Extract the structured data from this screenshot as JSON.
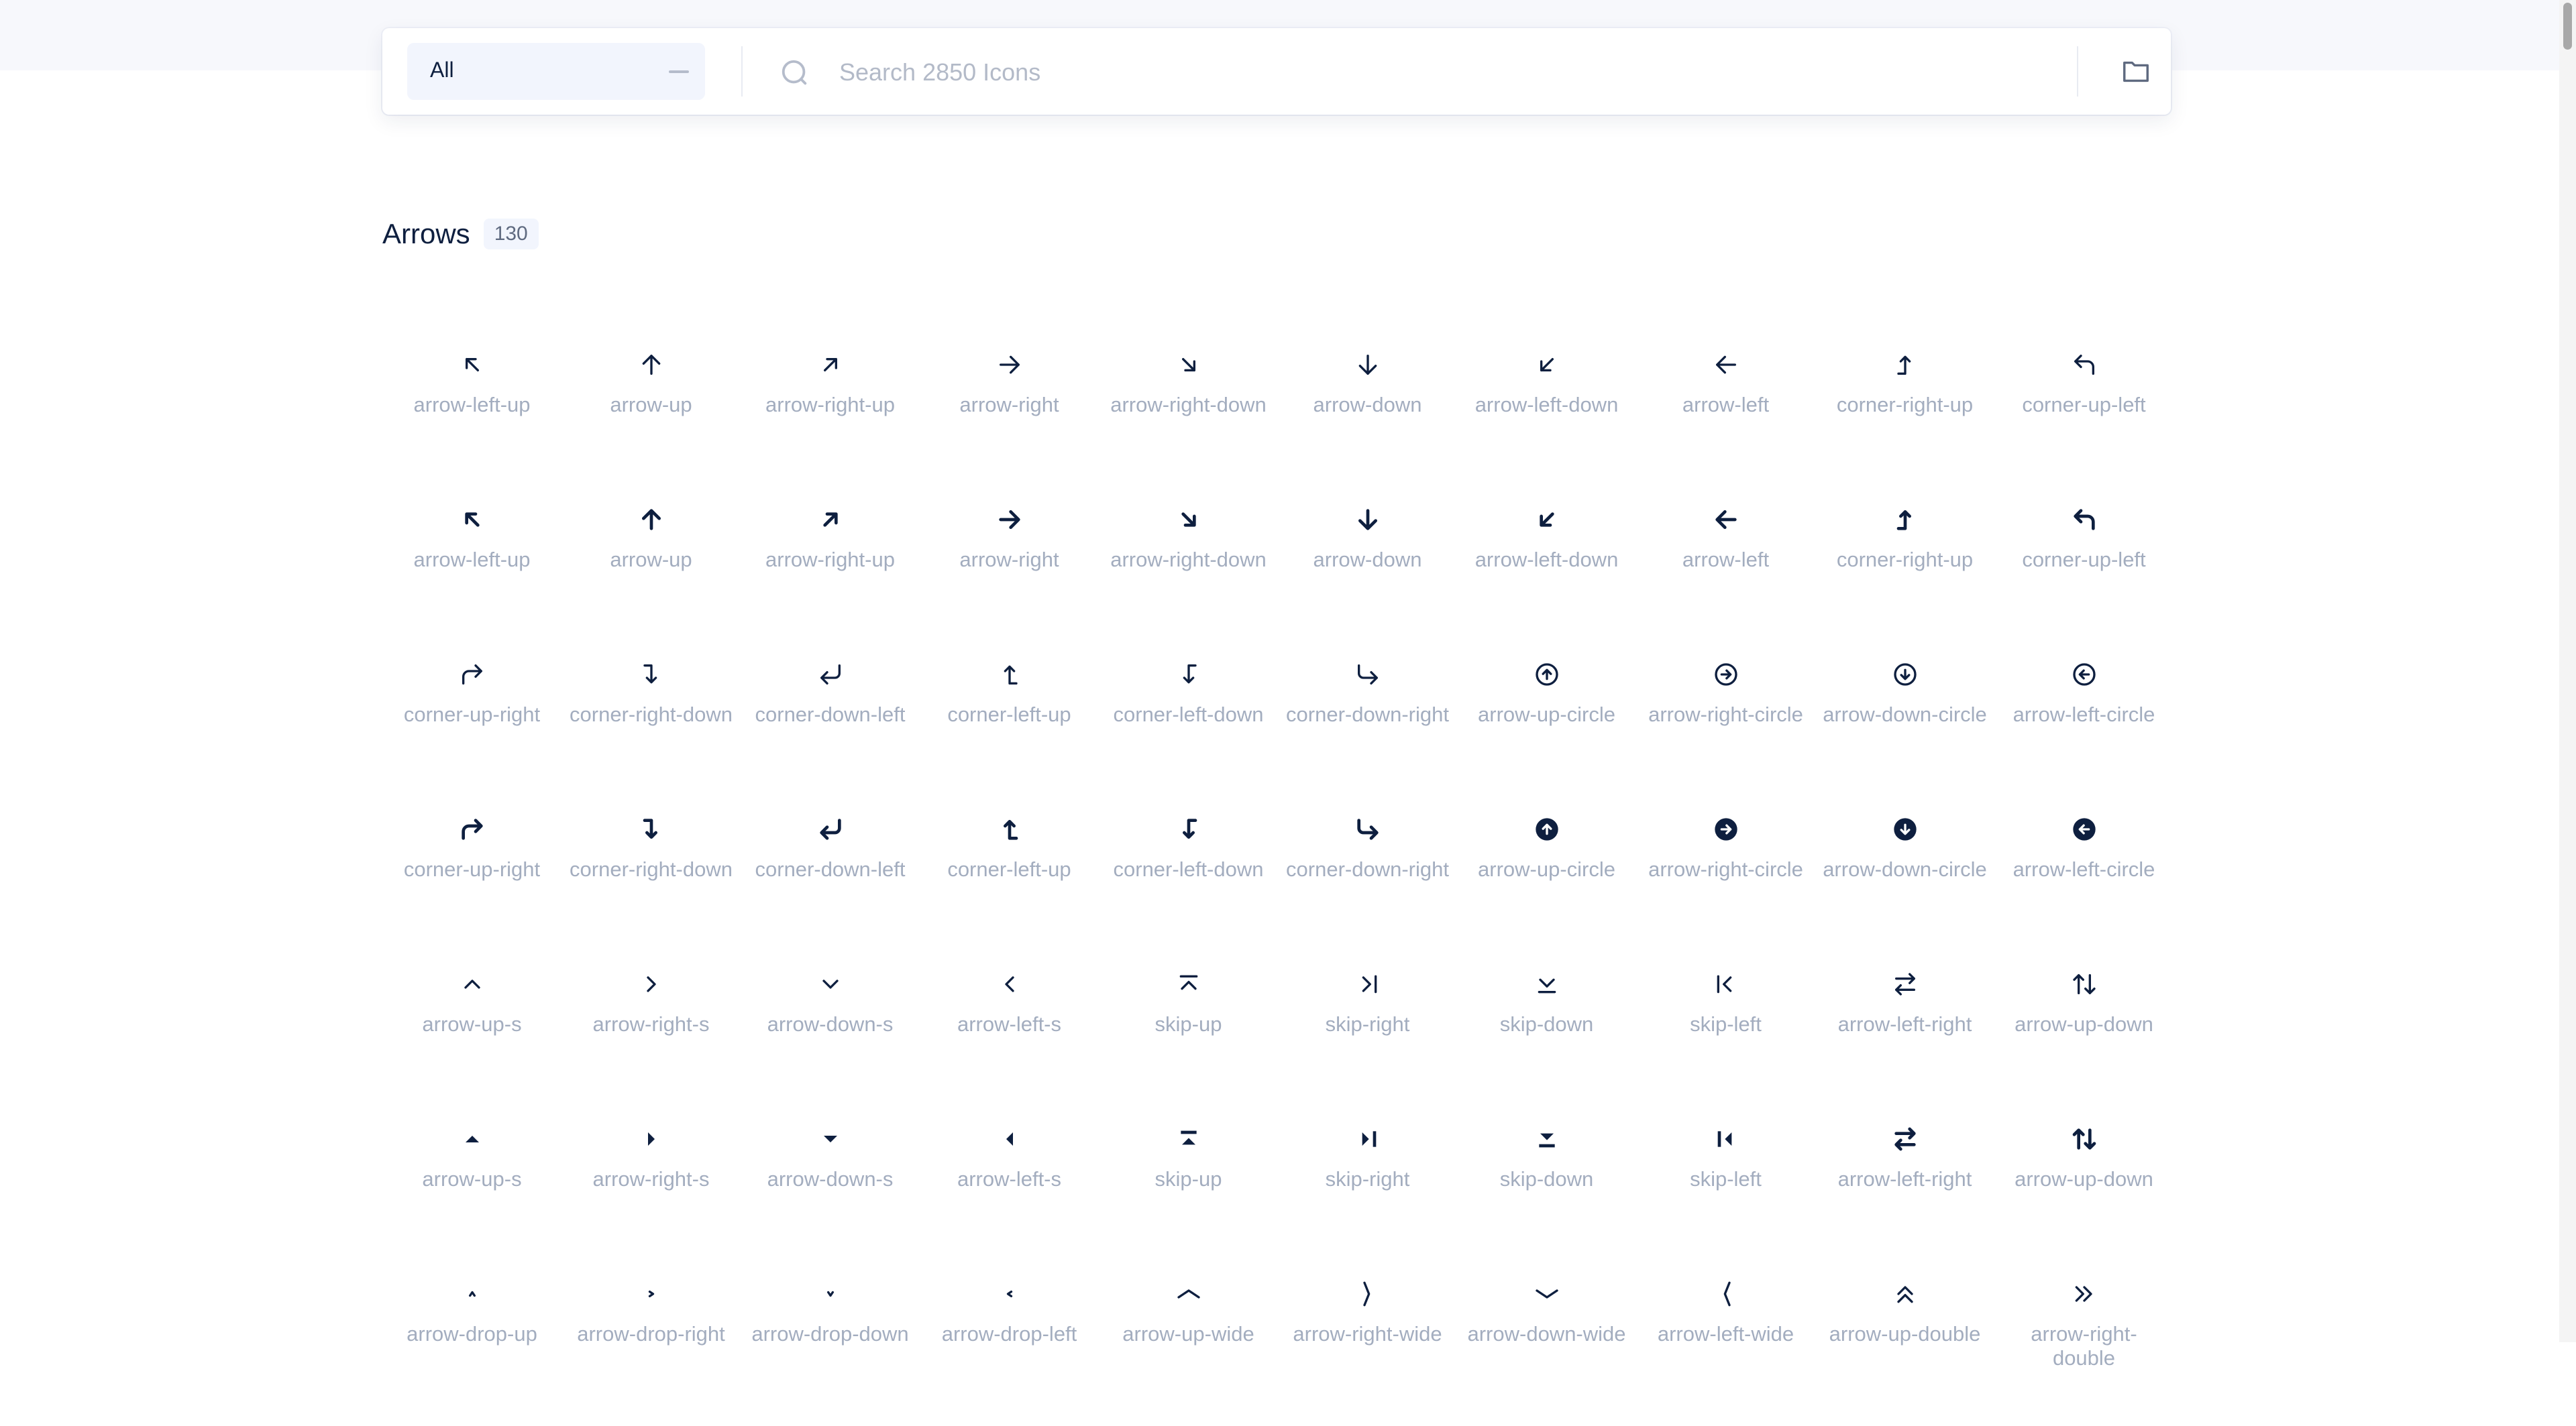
{
  "toolbar": {
    "category_select": "All",
    "search_placeholder": "Search 2850 Icons"
  },
  "section": {
    "title": "Arrows",
    "count": "130"
  },
  "colors": {
    "icon": "#0e1f3f",
    "label": "#a3adbf",
    "accent_bg": "#f2f5fd"
  },
  "icons": [
    {
      "label": "arrow-left-up",
      "icon": "arrow-left-up",
      "style": "line"
    },
    {
      "label": "arrow-up",
      "icon": "arrow-up",
      "style": "line"
    },
    {
      "label": "arrow-right-up",
      "icon": "arrow-right-up",
      "style": "line"
    },
    {
      "label": "arrow-right",
      "icon": "arrow-right",
      "style": "line"
    },
    {
      "label": "arrow-right-down",
      "icon": "arrow-right-down",
      "style": "line"
    },
    {
      "label": "arrow-down",
      "icon": "arrow-down",
      "style": "line"
    },
    {
      "label": "arrow-left-down",
      "icon": "arrow-left-down",
      "style": "line"
    },
    {
      "label": "arrow-left",
      "icon": "arrow-left",
      "style": "line"
    },
    {
      "label": "corner-right-up",
      "icon": "corner-right-up",
      "style": "line"
    },
    {
      "label": "corner-up-left",
      "icon": "corner-up-left",
      "style": "line"
    },
    {
      "label": "arrow-left-up",
      "icon": "arrow-left-up",
      "style": "fill"
    },
    {
      "label": "arrow-up",
      "icon": "arrow-up",
      "style": "fill"
    },
    {
      "label": "arrow-right-up",
      "icon": "arrow-right-up",
      "style": "fill"
    },
    {
      "label": "arrow-right",
      "icon": "arrow-right",
      "style": "fill"
    },
    {
      "label": "arrow-right-down",
      "icon": "arrow-right-down",
      "style": "fill"
    },
    {
      "label": "arrow-down",
      "icon": "arrow-down",
      "style": "fill"
    },
    {
      "label": "arrow-left-down",
      "icon": "arrow-left-down",
      "style": "fill"
    },
    {
      "label": "arrow-left",
      "icon": "arrow-left",
      "style": "fill"
    },
    {
      "label": "corner-right-up",
      "icon": "corner-right-up",
      "style": "fill"
    },
    {
      "label": "corner-up-left",
      "icon": "corner-up-left",
      "style": "fill"
    },
    {
      "label": "corner-up-right",
      "icon": "corner-up-right",
      "style": "line"
    },
    {
      "label": "corner-right-down",
      "icon": "corner-right-down",
      "style": "line"
    },
    {
      "label": "corner-down-left",
      "icon": "corner-down-left",
      "style": "line"
    },
    {
      "label": "corner-left-up",
      "icon": "corner-left-up",
      "style": "line"
    },
    {
      "label": "corner-left-down",
      "icon": "corner-left-down",
      "style": "line"
    },
    {
      "label": "corner-down-right",
      "icon": "corner-down-right",
      "style": "line"
    },
    {
      "label": "arrow-up-circle",
      "icon": "arrow-up-circle",
      "style": "line"
    },
    {
      "label": "arrow-right-circle",
      "icon": "arrow-right-circle",
      "style": "line"
    },
    {
      "label": "arrow-down-circle",
      "icon": "arrow-down-circle",
      "style": "line"
    },
    {
      "label": "arrow-left-circle",
      "icon": "arrow-left-circle",
      "style": "line"
    },
    {
      "label": "corner-up-right",
      "icon": "corner-up-right",
      "style": "fill"
    },
    {
      "label": "corner-right-down",
      "icon": "corner-right-down",
      "style": "fill"
    },
    {
      "label": "corner-down-left",
      "icon": "corner-down-left",
      "style": "fill"
    },
    {
      "label": "corner-left-up",
      "icon": "corner-left-up",
      "style": "fill"
    },
    {
      "label": "corner-left-down",
      "icon": "corner-left-down",
      "style": "fill"
    },
    {
      "label": "corner-down-right",
      "icon": "corner-down-right",
      "style": "fill"
    },
    {
      "label": "arrow-up-circle",
      "icon": "arrow-up-circle",
      "style": "fill"
    },
    {
      "label": "arrow-right-circle",
      "icon": "arrow-right-circle",
      "style": "fill"
    },
    {
      "label": "arrow-down-circle",
      "icon": "arrow-down-circle",
      "style": "fill"
    },
    {
      "label": "arrow-left-circle",
      "icon": "arrow-left-circle",
      "style": "fill"
    },
    {
      "label": "arrow-up-s",
      "icon": "arrow-up-s",
      "style": "line"
    },
    {
      "label": "arrow-right-s",
      "icon": "arrow-right-s",
      "style": "line"
    },
    {
      "label": "arrow-down-s",
      "icon": "arrow-down-s",
      "style": "line"
    },
    {
      "label": "arrow-left-s",
      "icon": "arrow-left-s",
      "style": "line"
    },
    {
      "label": "skip-up",
      "icon": "skip-up",
      "style": "line"
    },
    {
      "label": "skip-right",
      "icon": "skip-right",
      "style": "line"
    },
    {
      "label": "skip-down",
      "icon": "skip-down",
      "style": "line"
    },
    {
      "label": "skip-left",
      "icon": "skip-left",
      "style": "line"
    },
    {
      "label": "arrow-left-right",
      "icon": "arrow-left-right",
      "style": "line"
    },
    {
      "label": "arrow-up-down",
      "icon": "arrow-up-down",
      "style": "line"
    },
    {
      "label": "arrow-up-s",
      "icon": "arrow-up-s",
      "style": "fill"
    },
    {
      "label": "arrow-right-s",
      "icon": "arrow-right-s",
      "style": "fill"
    },
    {
      "label": "arrow-down-s",
      "icon": "arrow-down-s",
      "style": "fill"
    },
    {
      "label": "arrow-left-s",
      "icon": "arrow-left-s",
      "style": "fill"
    },
    {
      "label": "skip-up",
      "icon": "skip-up",
      "style": "fill"
    },
    {
      "label": "skip-right",
      "icon": "skip-right",
      "style": "fill"
    },
    {
      "label": "skip-down",
      "icon": "skip-down",
      "style": "fill"
    },
    {
      "label": "skip-left",
      "icon": "skip-left",
      "style": "fill"
    },
    {
      "label": "arrow-left-right",
      "icon": "arrow-left-right",
      "style": "fill"
    },
    {
      "label": "arrow-up-down",
      "icon": "arrow-up-down",
      "style": "fill"
    },
    {
      "label": "arrow-drop-up",
      "icon": "arrow-drop-up",
      "style": "line"
    },
    {
      "label": "arrow-drop-right",
      "icon": "arrow-drop-right",
      "style": "line"
    },
    {
      "label": "arrow-drop-down",
      "icon": "arrow-drop-down",
      "style": "line"
    },
    {
      "label": "arrow-drop-left",
      "icon": "arrow-drop-left",
      "style": "line"
    },
    {
      "label": "arrow-up-wide",
      "icon": "arrow-up-wide",
      "style": "line"
    },
    {
      "label": "arrow-right-wide",
      "icon": "arrow-right-wide",
      "style": "line"
    },
    {
      "label": "arrow-down-wide",
      "icon": "arrow-down-wide",
      "style": "line"
    },
    {
      "label": "arrow-left-wide",
      "icon": "arrow-left-wide",
      "style": "line"
    },
    {
      "label": "arrow-up-double",
      "icon": "arrow-up-double",
      "style": "line"
    },
    {
      "label": "arrow-right-double",
      "icon": "arrow-right-double",
      "style": "line"
    }
  ]
}
